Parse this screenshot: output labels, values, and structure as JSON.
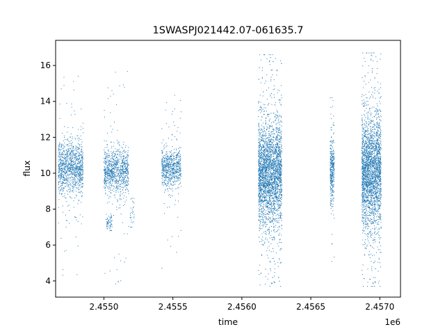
{
  "chart_data": {
    "type": "scatter",
    "title": "1SWASPJ021442.07-061635.7",
    "xlabel": "time",
    "ylabel": "flux",
    "x_offset_label": "1e6",
    "x_scale": 1000000,
    "xlim": [
      2454650,
      2457150
    ],
    "ylim": [
      3.1,
      17.4
    ],
    "x_ticks": [
      2455000,
      2455500,
      2456000,
      2456500,
      2457000
    ],
    "x_tick_labels": [
      "2.4550",
      "2.4555",
      "2.4560",
      "2.4565",
      "2.4570"
    ],
    "y_ticks": [
      4,
      6,
      8,
      10,
      12,
      14,
      16
    ],
    "y_tick_labels": [
      "4",
      "6",
      "8",
      "10",
      "12",
      "14",
      "16"
    ],
    "grid": false,
    "marker_color": "#1f77b4",
    "series": [
      {
        "name": "",
        "clusters": [
          {
            "x_range": [
              2454670,
              2454850
            ],
            "y_center": 10.3,
            "y_sd": 0.7,
            "n": 1100,
            "y_min": 3.9,
            "y_max": 15.7
          },
          {
            "x_range": [
              2455000,
              2455180
            ],
            "y_center": 10.1,
            "y_sd": 0.6,
            "n": 950,
            "y_min": 3.8,
            "y_max": 16.0
          },
          {
            "x_range": [
              2455020,
              2455060
            ],
            "y_center": 7.2,
            "y_sd": 0.2,
            "n": 60,
            "y_min": 6.8,
            "y_max": 7.6
          },
          {
            "x_range": [
              2455190,
              2455220
            ],
            "y_center": 7.7,
            "y_sd": 0.4,
            "n": 30,
            "y_min": 7.0,
            "y_max": 8.6
          },
          {
            "x_range": [
              2455420,
              2455560
            ],
            "y_center": 10.3,
            "y_sd": 0.5,
            "n": 700,
            "y_min": 3.9,
            "y_max": 15.6
          },
          {
            "x_range": [
              2456120,
              2456290
            ],
            "y_center": 10.0,
            "y_sd": 1.4,
            "n": 3200,
            "y_min": 3.7,
            "y_max": 16.6
          },
          {
            "x_range": [
              2456640,
              2456670
            ],
            "y_center": 10.2,
            "y_sd": 0.9,
            "n": 350,
            "y_min": 4.8,
            "y_max": 14.2
          },
          {
            "x_range": [
              2456870,
              2457010
            ],
            "y_center": 10.1,
            "y_sd": 1.5,
            "n": 2600,
            "y_min": 3.7,
            "y_max": 16.7
          }
        ]
      }
    ]
  }
}
